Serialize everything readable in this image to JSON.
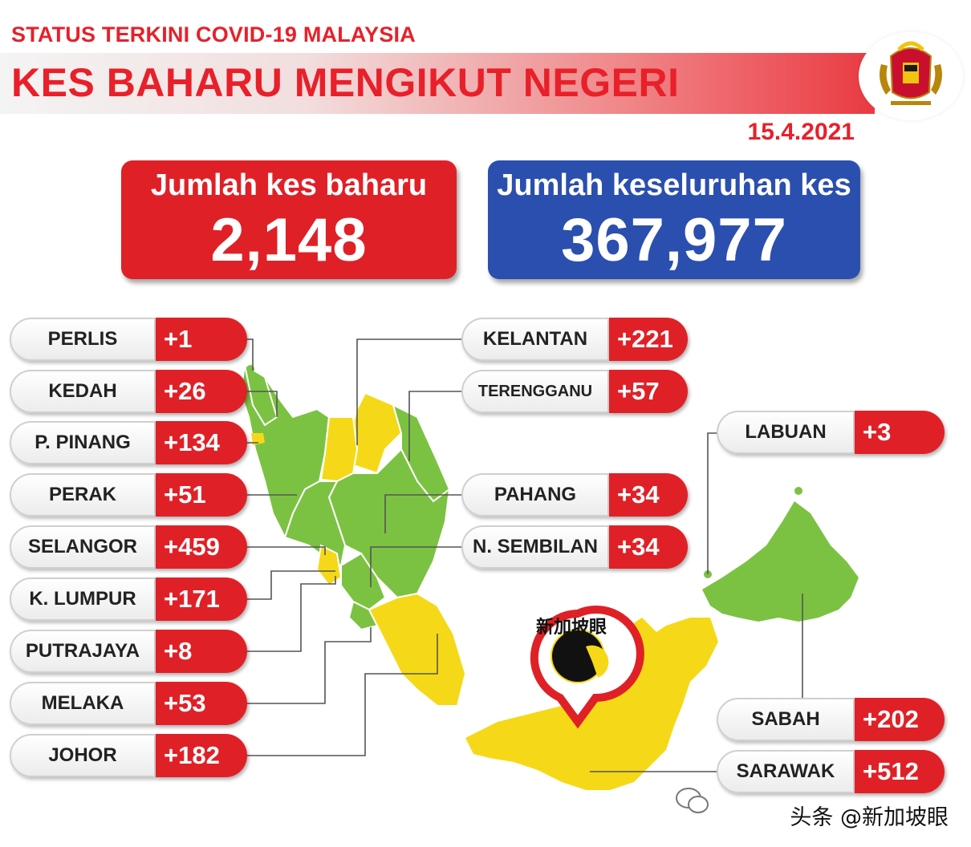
{
  "header": {
    "subtitle": "STATUS TERKINI COVID-19 MALAYSIA",
    "title": "KES BAHARU MENGIKUT NEGERI",
    "date": "15.4.2021"
  },
  "summary": {
    "new_cases_label": "Jumlah kes baharu",
    "new_cases_value": "2,148",
    "total_cases_label": "Jumlah keseluruhan kes",
    "total_cases_value": "367,977"
  },
  "states_left": [
    {
      "name": "PERLIS",
      "value": "+1"
    },
    {
      "name": "KEDAH",
      "value": "+26"
    },
    {
      "name": "P. PINANG",
      "value": "+134"
    },
    {
      "name": "PERAK",
      "value": "+51"
    },
    {
      "name": "SELANGOR",
      "value": "+459"
    },
    {
      "name": "K. LUMPUR",
      "value": "+171"
    },
    {
      "name": "PUTRAJAYA",
      "value": "+8"
    },
    {
      "name": "MELAKA",
      "value": "+53"
    },
    {
      "name": "JOHOR",
      "value": "+182"
    }
  ],
  "states_middle": [
    {
      "name": "KELANTAN",
      "value": "+221"
    },
    {
      "name": "TERENGGANU",
      "value": "+57"
    },
    {
      "name": "PAHANG",
      "value": "+34"
    },
    {
      "name": "N. SEMBILAN",
      "value": "+34"
    }
  ],
  "states_right": [
    {
      "name": "LABUAN",
      "value": "+3"
    },
    {
      "name": "SABAH",
      "value": "+202"
    },
    {
      "name": "SARAWAK",
      "value": "+512"
    }
  ],
  "badge": {
    "text": "新加坡眼"
  },
  "watermark": {
    "text": "头条 @新加坡眼"
  },
  "colors": {
    "red": "#df2127",
    "blue": "#2b4fae",
    "map_green": "#7cc242",
    "map_yellow": "#f5d918"
  }
}
